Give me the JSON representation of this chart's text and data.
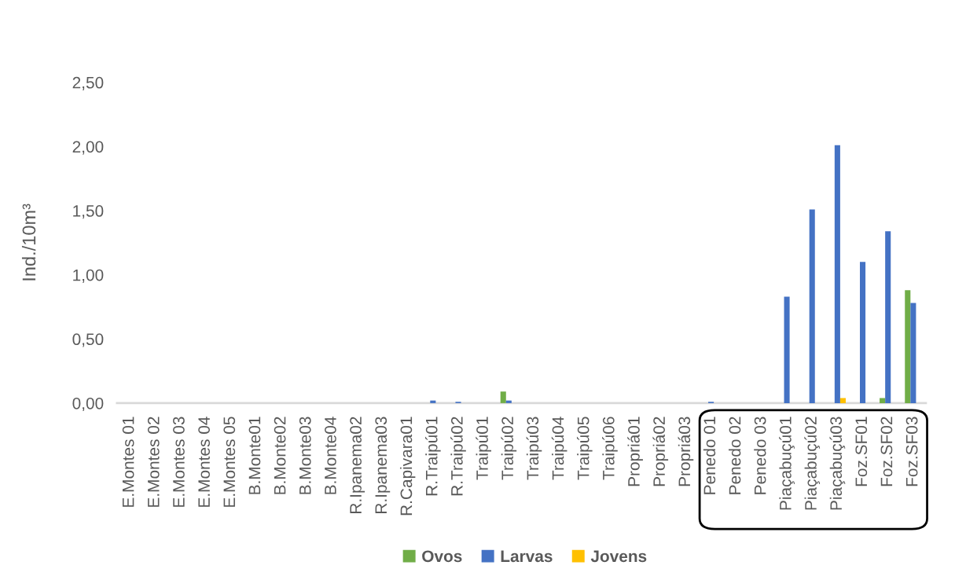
{
  "chart_data": {
    "type": "bar",
    "ylabel": "Ind./10m³",
    "categories": [
      "E.Montes 01",
      "E.Montes 02",
      "E.Montes 03",
      "E.Montes 04",
      "E.Montes 05",
      "B.Monte01",
      "B.Monte02",
      "B.Monte03",
      "B.Monte04",
      "R.Ipanema02",
      "R.Ipanema03",
      "R.Capivara01",
      "R.Traipú01",
      "R.Traipú02",
      "Traipú01",
      "Traipú02",
      "Traipú03",
      "Traipú04",
      "Traipú05",
      "Traipú06",
      "Propriá01",
      "Propriá02",
      "Propriá03",
      "Penedo 01",
      "Penedo 02",
      "Penedo 03",
      "Piaçabuçú01",
      "Piaçabuçú02",
      "Piaçabuçú03",
      "Foz.SF01",
      "Foz.SF02",
      "Foz.SF03"
    ],
    "series": [
      {
        "name": "Ovos",
        "color": "#70ad47",
        "values": [
          0,
          0,
          0,
          0,
          0,
          0,
          0,
          0,
          0,
          0,
          0,
          0,
          0,
          0,
          0,
          0.09,
          0,
          0,
          0,
          0,
          0,
          0,
          0,
          0,
          0,
          0,
          0,
          0,
          0,
          0,
          0.04,
          0.88
        ]
      },
      {
        "name": "Larvas",
        "color": "#4472c4",
        "values": [
          0,
          0,
          0,
          0,
          0,
          0,
          0,
          0,
          0,
          0,
          0,
          0,
          0.02,
          0.01,
          0,
          0.02,
          0,
          0,
          0,
          0,
          0,
          0,
          0,
          0.01,
          0,
          0,
          0.83,
          1.51,
          2.01,
          1.1,
          1.34,
          0.78
        ]
      },
      {
        "name": "Jovens",
        "color": "#ffc000",
        "values": [
          0,
          0,
          0,
          0,
          0,
          0,
          0,
          0,
          0,
          0,
          0,
          0,
          0,
          0,
          0,
          0,
          0,
          0,
          0,
          0,
          0,
          0,
          0,
          0,
          0,
          0,
          0,
          0,
          0.04,
          0,
          0,
          0
        ]
      }
    ],
    "ylim": [
      0,
      2.5
    ],
    "yticks": [
      {
        "value": 0,
        "label": "0,00"
      },
      {
        "value": 0.5,
        "label": "0,50"
      },
      {
        "value": 1,
        "label": "1,00"
      },
      {
        "value": 1.5,
        "label": "1,50"
      },
      {
        "value": 2,
        "label": "2,00"
      },
      {
        "value": 2.5,
        "label": "2,50"
      }
    ],
    "grid": false,
    "legend": "bottom"
  }
}
